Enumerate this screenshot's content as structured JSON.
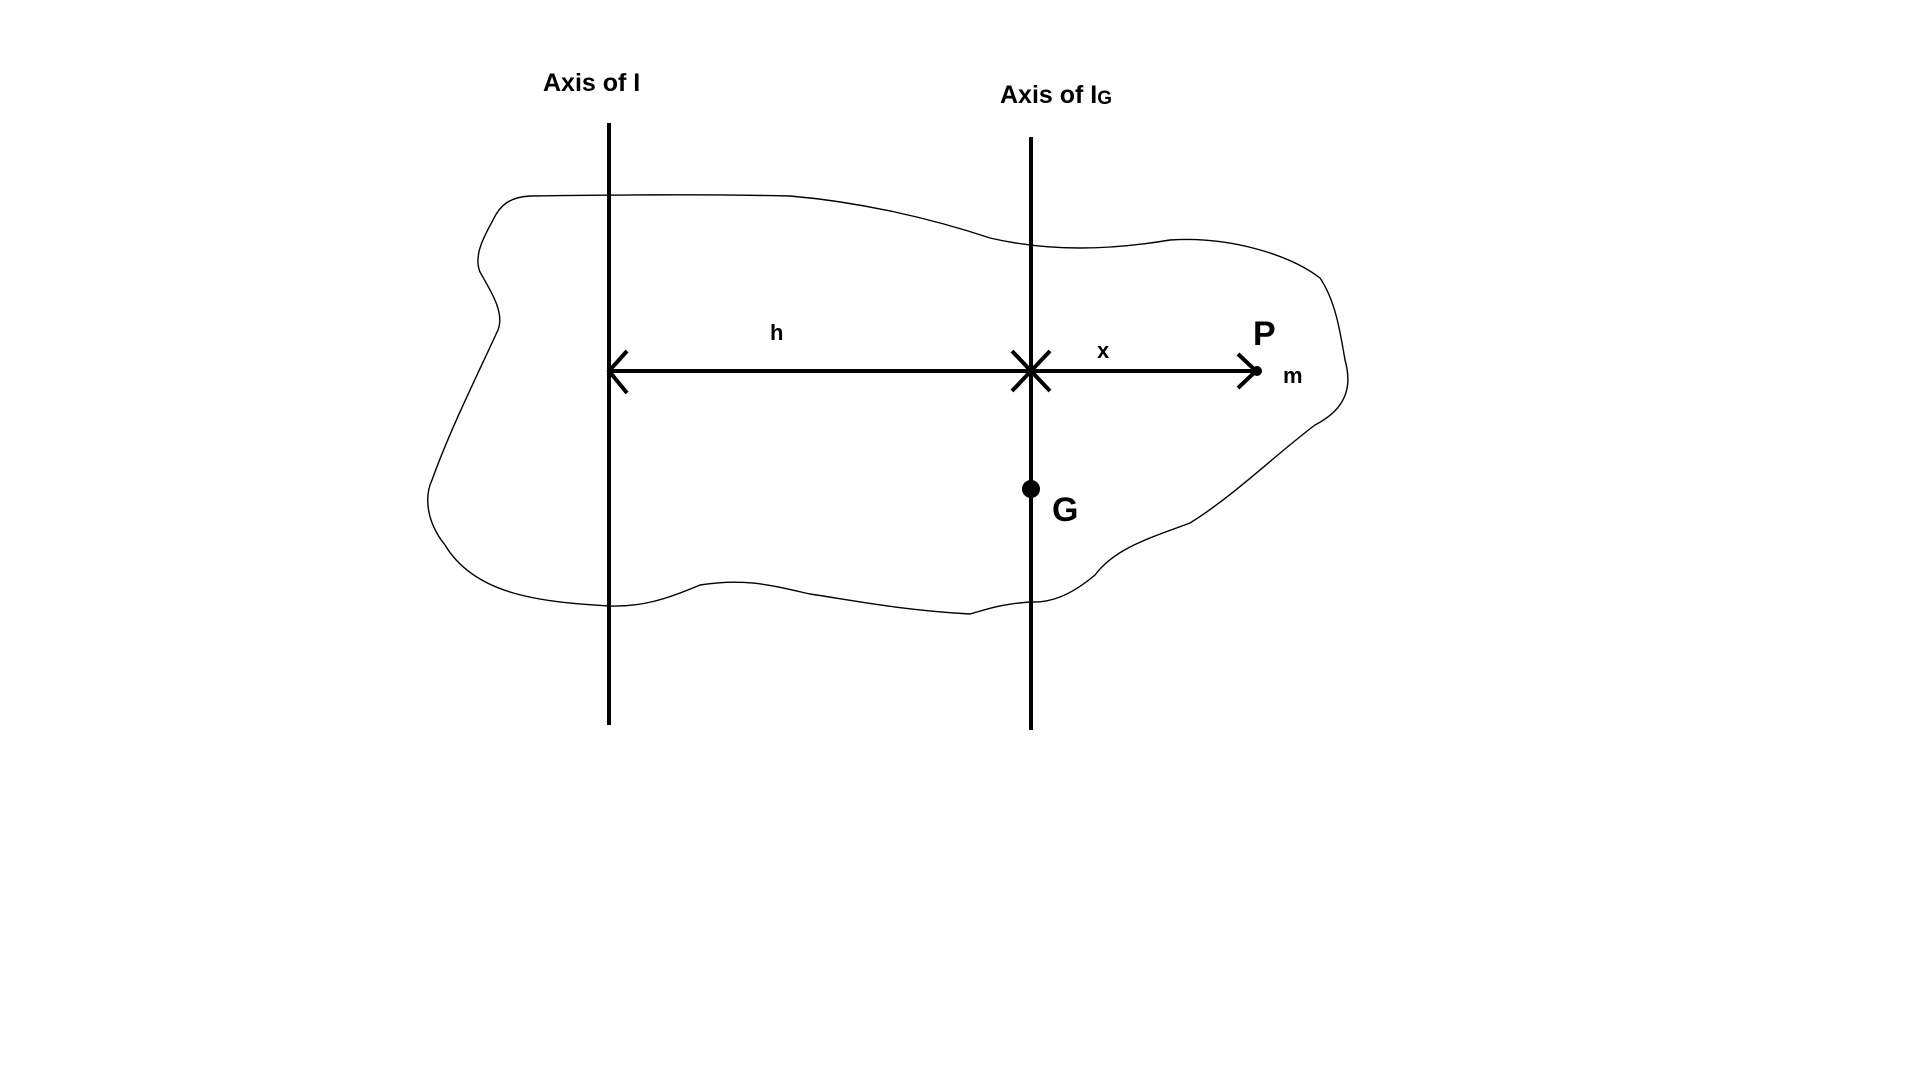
{
  "labels": {
    "axis_i": "Axis of I",
    "axis_ig_main": "Axis of I",
    "axis_ig_sub": "G",
    "h": "h",
    "x": "x",
    "p": "P",
    "m": "m",
    "g": "G"
  },
  "colors": {
    "background": "#ffffff",
    "ink": "#000000"
  }
}
